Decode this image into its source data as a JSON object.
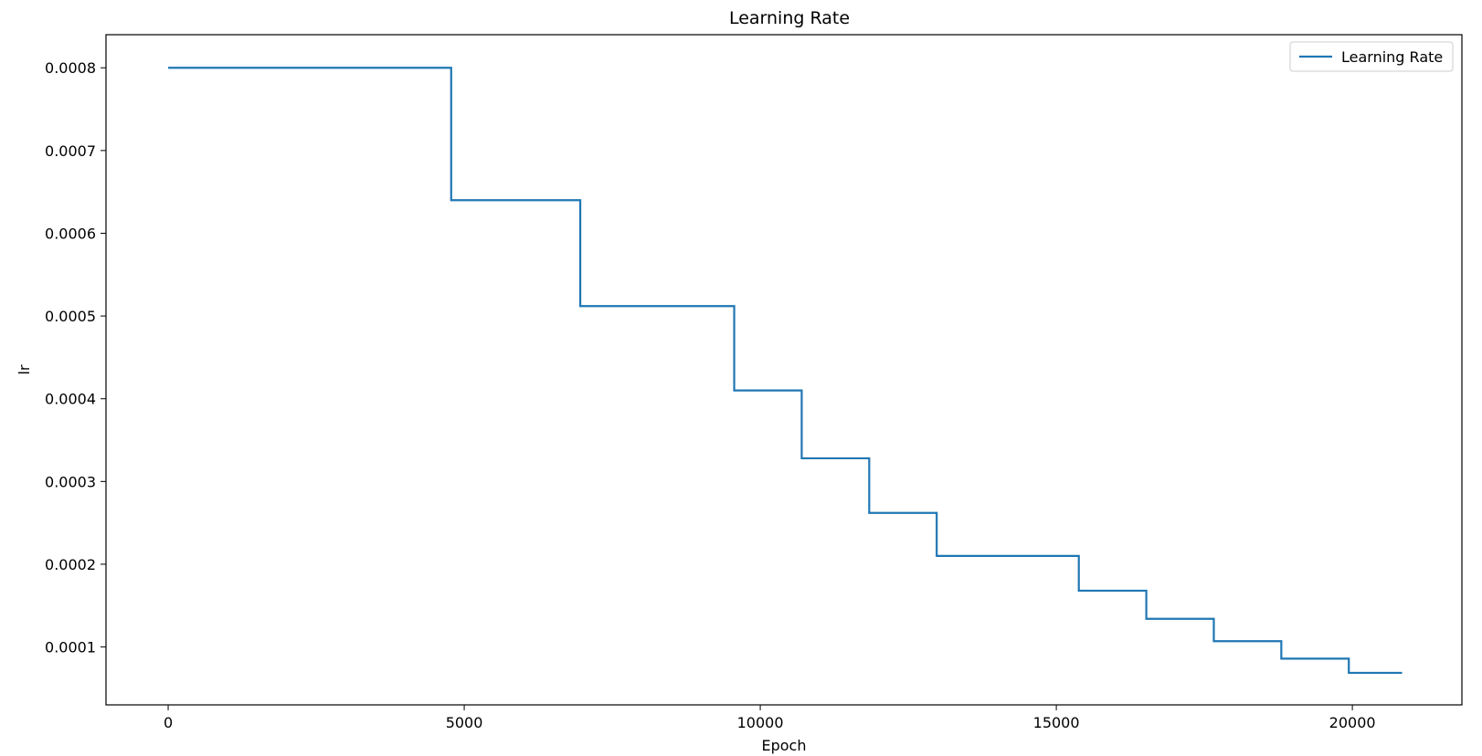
{
  "chart_data": {
    "type": "line",
    "drawstyle": "steps-post",
    "title": "Learning Rate",
    "xlabel": "Epoch",
    "ylabel": "lr",
    "xlim": [
      -1050,
      21850
    ],
    "ylim": [
      3e-05,
      0.00084
    ],
    "xticks": [
      0,
      5000,
      10000,
      15000,
      20000
    ],
    "xtick_labels": [
      "0",
      "5000",
      "10000",
      "15000",
      "20000"
    ],
    "yticks": [
      0.0001,
      0.0002,
      0.0003,
      0.0004,
      0.0005,
      0.0006,
      0.0007,
      0.0008
    ],
    "ytick_labels": [
      "0.0001",
      "0.0002",
      "0.0003",
      "0.0004",
      "0.0005",
      "0.0006",
      "0.0007",
      "0.0008"
    ],
    "grid": false,
    "legend_position": "top-right",
    "series": [
      {
        "name": "Learning Rate",
        "color": "#1f77b4",
        "x": [
          0,
          4780,
          6960,
          9560,
          10700,
          11840,
          12980,
          15380,
          16520,
          17660,
          18800,
          19940,
          20840
        ],
        "values": [
          0.0008,
          0.00064,
          0.000512,
          0.00041,
          0.000328,
          0.000262,
          0.00021,
          0.000168,
          0.000134,
          0.000107,
          8.59e-05,
          6.87e-05,
          6.87e-05
        ]
      }
    ]
  }
}
